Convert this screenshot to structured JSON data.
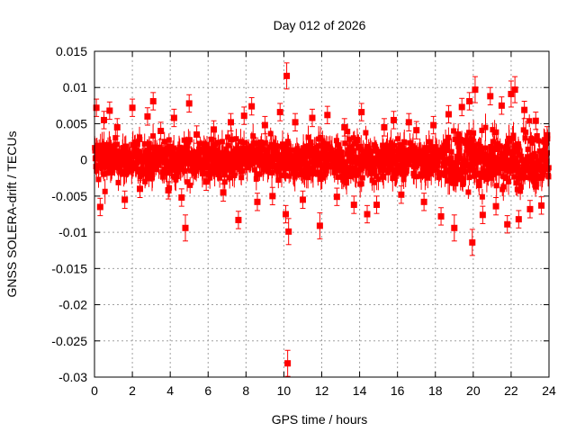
{
  "chart_data": {
    "type": "scatter",
    "title": "Day 012 of 2026",
    "xlabel": "GPS time / hours",
    "ylabel": "GNSS SOLERA-drift / TECUs",
    "xlim": [
      0,
      24
    ],
    "ylim": [
      -0.03,
      0.015
    ],
    "x_ticks": [
      0,
      2,
      4,
      6,
      8,
      10,
      12,
      14,
      16,
      18,
      20,
      22,
      24
    ],
    "x_tick_labels": [
      "0",
      "2",
      "4",
      "6",
      "8",
      "10",
      "12",
      "14",
      "16",
      "18",
      "20",
      "22",
      "24"
    ],
    "y_ticks": [
      0.015,
      0.01,
      0.005,
      0,
      -0.005,
      -0.01,
      -0.015,
      -0.02,
      -0.025,
      -0.03
    ],
    "y_tick_labels": [
      "0.015",
      "0.01",
      "0.005",
      "0",
      "-0.005",
      "-0.01",
      "-0.015",
      "-0.02",
      "-0.025",
      "-0.03"
    ],
    "grid": true,
    "grid_style": "dotted",
    "marker": "square",
    "error_bars": true,
    "series_color": "#ff0000",
    "series": [
      {
        "x": [
          0.1,
          0.3,
          0.5,
          0.8,
          1.2,
          1.6,
          2.0,
          2.4,
          2.8,
          3.1,
          3.5,
          3.9,
          4.2,
          4.6,
          4.8,
          5.0,
          5.4,
          5.9,
          6.3,
          6.8,
          7.2,
          7.6,
          7.9,
          8.3,
          8.6,
          9.0,
          9.4,
          9.8,
          10.1,
          10.15,
          10.2,
          10.25,
          10.6,
          11.0,
          11.5,
          11.9,
          12.3,
          12.8,
          13.2,
          13.7,
          14.1,
          14.4,
          14.9,
          15.3,
          15.8,
          16.2,
          16.6,
          17.0,
          17.4,
          17.9,
          18.3,
          18.7,
          19.0,
          19.4,
          19.8,
          19.95,
          20.1,
          20.5,
          20.9,
          21.2,
          21.5,
          21.8,
          22.0,
          22.2,
          22.4,
          22.7,
          23.0,
          23.3,
          23.6,
          23.9
        ],
        "y": [
          0.0072,
          -0.0065,
          0.0055,
          0.0068,
          0.0045,
          -0.0055,
          0.0072,
          -0.004,
          0.006,
          0.0081,
          0.004,
          -0.0042,
          0.0058,
          -0.0052,
          -0.0094,
          0.0078,
          0.0035,
          -0.003,
          0.0042,
          -0.0045,
          0.0052,
          -0.0083,
          0.0061,
          0.0074,
          -0.0058,
          0.0048,
          -0.005,
          0.0066,
          -0.0075,
          0.0116,
          -0.0281,
          -0.0099,
          0.0052,
          -0.0055,
          0.0058,
          -0.0091,
          0.0062,
          -0.0051,
          0.0045,
          -0.0062,
          0.0066,
          -0.0075,
          -0.0062,
          0.0045,
          0.0055,
          -0.0048,
          0.0052,
          0.0041,
          -0.0058,
          0.0048,
          -0.0078,
          0.0063,
          -0.0094,
          0.0073,
          0.0081,
          -0.0114,
          0.0097,
          -0.0076,
          0.0088,
          -0.0064,
          0.0075,
          -0.0089,
          0.0091,
          0.0097,
          -0.0082,
          0.0069,
          -0.0068,
          0.0054,
          -0.0063,
          0.0034
        ]
      }
    ]
  }
}
